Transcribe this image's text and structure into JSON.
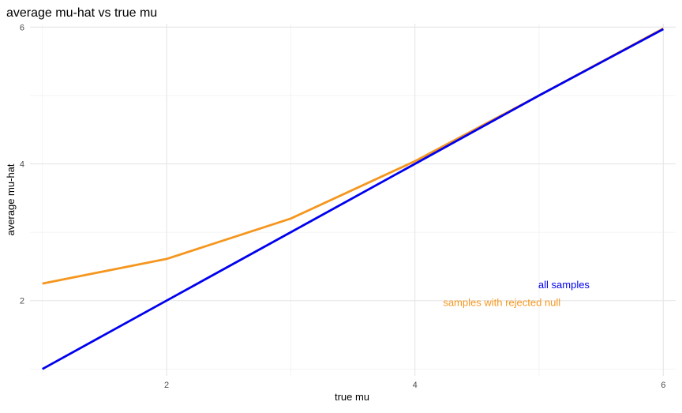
{
  "chart_data": {
    "type": "line",
    "title": "average mu-hat vs true mu",
    "xlabel": "true mu",
    "ylabel": "average mu-hat",
    "xlim": [
      0.9,
      6.1
    ],
    "ylim": [
      0.9,
      6.05
    ],
    "x_ticks": [
      2,
      4,
      6
    ],
    "y_ticks": [
      2,
      4,
      6
    ],
    "x_minor_gridlines": [
      1,
      3,
      5
    ],
    "y_minor_gridlines": [
      1,
      3,
      5
    ],
    "grid": true,
    "x": [
      1,
      2,
      3,
      4,
      5,
      6
    ],
    "series": [
      {
        "name": "all samples",
        "color": "#0000ee",
        "values": [
          1.0,
          2.0,
          3.0,
          4.0,
          5.0,
          5.97
        ]
      },
      {
        "name": "samples with rejected null",
        "color": "#f5961e",
        "values": [
          2.25,
          2.61,
          3.2,
          4.04,
          5.0,
          5.98
        ]
      }
    ],
    "annotations": [
      {
        "text": "all samples",
        "x": 5.2,
        "y": 2.24,
        "color": "#0000ee",
        "series": 0
      },
      {
        "text": "samples with rejected null",
        "x": 4.7,
        "y": 1.98,
        "color": "#f5961e",
        "series": 1
      }
    ]
  }
}
